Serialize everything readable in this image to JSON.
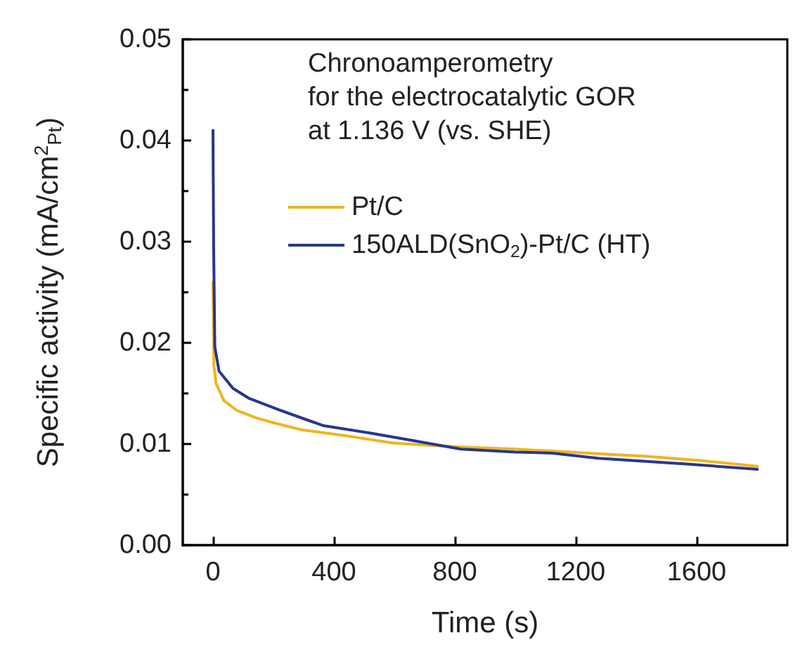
{
  "chart_data": {
    "type": "line",
    "xlabel": "Time (s)",
    "ylabel": "Specific activity (mA/cm$^{2}$$_{Pt}$)",
    "annotations": [
      "Chronoamperometry",
      "for the electrocatalytic GOR",
      "at 1.136 V (vs. SHE)"
    ],
    "xlim": [
      -100,
      1900
    ],
    "xticks": [
      0,
      400,
      800,
      1200,
      1600
    ],
    "ylim": [
      0,
      0.05
    ],
    "yticks": [
      {
        "value": 0,
        "label": "0.00"
      },
      {
        "value": 0.01,
        "label": "0.01"
      },
      {
        "value": 0.02,
        "label": "0.02"
      },
      {
        "value": 0.03,
        "label": "0.03"
      },
      {
        "value": 0.04,
        "label": "0.04"
      },
      {
        "value": 0.05,
        "label": "0.05"
      }
    ],
    "legend": "top",
    "grid": false,
    "marker": "none",
    "line_style": "solid",
    "series": [
      {
        "name": "Pt/C",
        "color": "#f0b51e",
        "x": [
          0,
          3,
          10,
          36,
          80,
          142,
          200,
          293,
          444,
          594,
          700,
          820,
          1000,
          1122,
          1300,
          1424,
          1600,
          1801
        ],
        "values": [
          0.026,
          0.0178,
          0.016,
          0.0143,
          0.0133,
          0.0126,
          0.0121,
          0.0114,
          0.0108,
          0.0101,
          0.0099,
          0.0097,
          0.0095,
          0.0093,
          0.009,
          0.0088,
          0.0084,
          0.0078
        ]
      },
      {
        "name": "150ALD(SnO$_{2}$)-Pt/C (HT)",
        "color": "#28368f",
        "x": [
          0,
          2,
          6,
          20,
          66,
          120,
          217,
          300,
          367,
          518,
          670,
          820,
          1000,
          1122,
          1273,
          1424,
          1575,
          1801
        ],
        "values": [
          0.041,
          0.03,
          0.0196,
          0.0172,
          0.0155,
          0.0145,
          0.0134,
          0.0125,
          0.0118,
          0.0111,
          0.0103,
          0.0095,
          0.0092,
          0.0091,
          0.0086,
          0.0083,
          0.008,
          0.0075
        ]
      }
    ]
  }
}
